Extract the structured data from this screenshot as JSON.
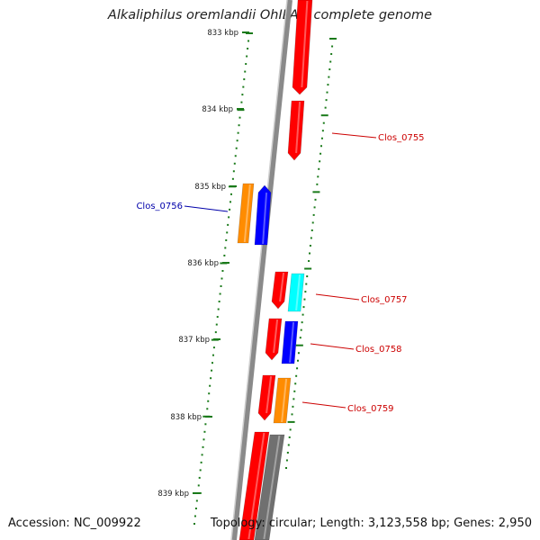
{
  "header": {
    "title": "Alkaliphilus oremlandii OhILAs, complete genome"
  },
  "footer": {
    "accession": "Accession: NC_009922",
    "summary": "Topology: circular; Length: 3,123,558 bp; Genes: 2,950"
  },
  "colors": {
    "backbone": "#8a8a8a",
    "ticks": "#1a7a1a",
    "red": "#ff0000",
    "blue": "#0000ff",
    "orange": "#ff8c00",
    "cyan": "#00ffff",
    "gray": "#707070",
    "label_red": "#cc0000",
    "label_blue": "#0000aa"
  },
  "scale_ticks": [
    "833 kbp",
    "834 kbp",
    "835 kbp",
    "836 kbp",
    "837 kbp",
    "838 kbp",
    "839 kbp"
  ],
  "genes": [
    {
      "name": "gene-red-top",
      "color": "red"
    },
    {
      "name": "gene-red-2",
      "color": "red"
    },
    {
      "name": "gene-orange-1",
      "color": "orange"
    },
    {
      "name": "gene-blue-1",
      "color": "blue"
    },
    {
      "name": "gene-red-3",
      "color": "red"
    },
    {
      "name": "gene-cyan-1",
      "color": "cyan"
    },
    {
      "name": "gene-red-4",
      "color": "red"
    },
    {
      "name": "gene-blue-2",
      "color": "blue"
    },
    {
      "name": "gene-red-5",
      "color": "red"
    },
    {
      "name": "gene-orange-2",
      "color": "orange"
    },
    {
      "name": "gene-red-6",
      "color": "red"
    },
    {
      "name": "gene-gray-1",
      "color": "gray"
    }
  ],
  "gene_labels": [
    {
      "text": "Clos_0755",
      "color": "label_red"
    },
    {
      "text": "Clos_0756",
      "color": "label_blue"
    },
    {
      "text": "Clos_0757",
      "color": "label_red"
    },
    {
      "text": "Clos_0758",
      "color": "label_red"
    },
    {
      "text": "Clos_0759",
      "color": "label_red"
    }
  ]
}
